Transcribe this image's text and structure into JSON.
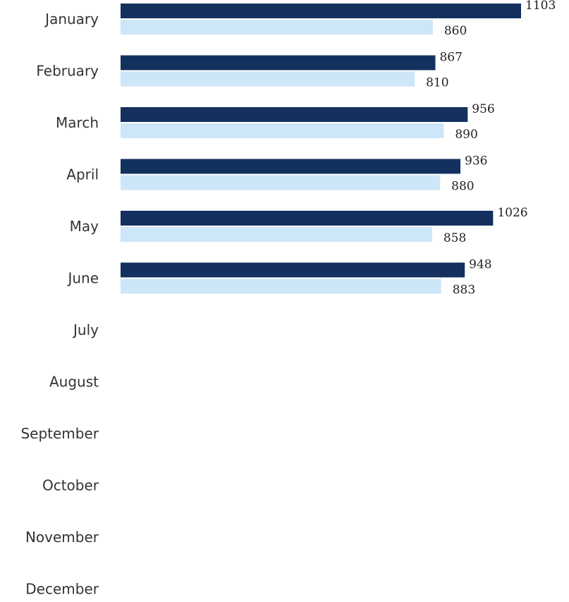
{
  "chart_data": {
    "type": "bar",
    "orientation": "horizontal",
    "categories": [
      "January",
      "February",
      "March",
      "April",
      "May",
      "June",
      "July",
      "August",
      "September",
      "October",
      "November",
      "December"
    ],
    "series": [
      {
        "values": [
          1103,
          867,
          956,
          936,
          1026,
          948,
          null,
          null,
          null,
          null,
          null,
          null
        ],
        "color": "#13305f"
      },
      {
        "values": [
          860,
          810,
          890,
          880,
          858,
          883,
          null,
          null,
          null,
          null,
          null,
          null
        ],
        "color": "#cde6f8"
      }
    ],
    "data_labels": [
      [
        "1103",
        "867",
        "956",
        "936",
        "1026",
        "948",
        "",
        "",
        "",
        "",
        "",
        ""
      ],
      [
        "860",
        "810",
        "890",
        "880",
        "858",
        "883",
        "",
        "",
        "",
        "",
        "",
        ""
      ]
    ],
    "xlim": [
      0,
      1103
    ],
    "grid": false,
    "legend": "none"
  }
}
